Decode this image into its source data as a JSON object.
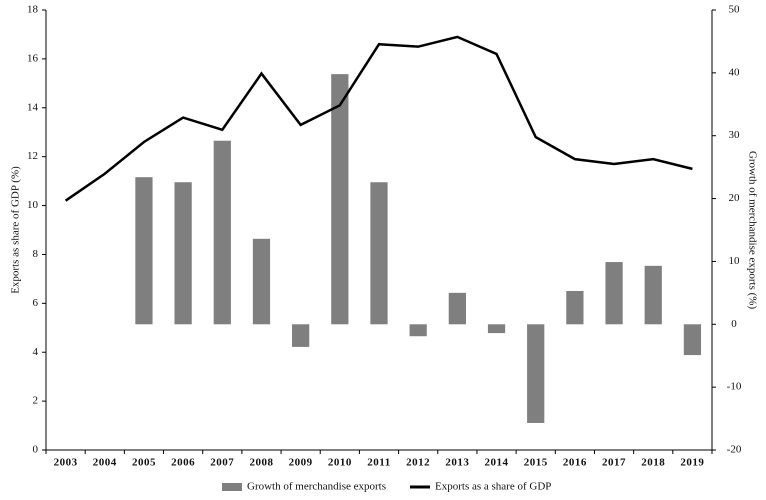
{
  "chart_data": {
    "type": "bar",
    "categories": [
      "2003",
      "2004",
      "2005",
      "2006",
      "2007",
      "2008",
      "2009",
      "2010",
      "2011",
      "2012",
      "2013",
      "2014",
      "2015",
      "2016",
      "2017",
      "2018",
      "2019"
    ],
    "y_label": "Exports as share of GDP (%)",
    "y2_label": "Growth of merchandise exports (%)",
    "ylim": [
      0,
      18
    ],
    "yticks": [
      0,
      2,
      4,
      6,
      8,
      10,
      12,
      14,
      16,
      18
    ],
    "y2lim": [
      -20,
      50
    ],
    "y2ticks": [
      -20,
      -10,
      0,
      10,
      20,
      30,
      40,
      50
    ],
    "series": [
      {
        "name": "Growth of merchandise exports",
        "type": "bar",
        "axis": "y2",
        "color": "#7f7f7f",
        "values": [
          null,
          null,
          23.4,
          22.6,
          29.2,
          13.6,
          -3.6,
          39.8,
          22.6,
          -1.9,
          5.0,
          -1.4,
          -15.7,
          5.3,
          9.9,
          9.3,
          -4.9
        ]
      },
      {
        "name": "Exports as a share of GDP",
        "type": "line",
        "axis": "y",
        "color": "#000000",
        "values": [
          10.2,
          11.3,
          12.6,
          13.6,
          13.1,
          15.4,
          13.3,
          14.1,
          16.6,
          16.5,
          16.9,
          16.2,
          12.8,
          11.9,
          11.7,
          11.9,
          11.5
        ]
      }
    ]
  }
}
